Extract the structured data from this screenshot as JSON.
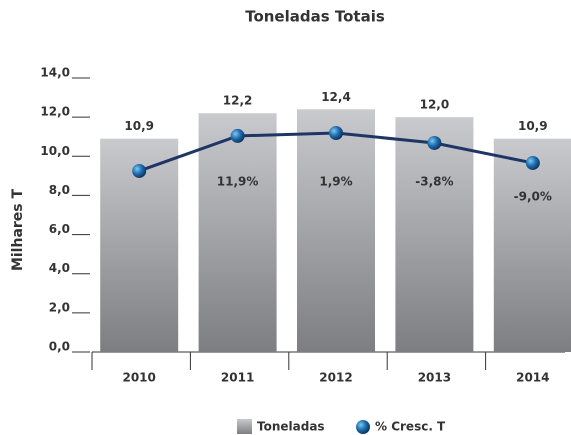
{
  "chart_data": {
    "type": "bar_line",
    "title": "Toneladas Totais",
    "y_label": "Milhares T",
    "categories": [
      "2010",
      "2011",
      "2012",
      "2013",
      "2014"
    ],
    "series": [
      {
        "name": "Toneladas",
        "type": "bar",
        "color": "#9a9b9f",
        "values": [
          10.9,
          12.2,
          12.4,
          12.0,
          10.9
        ],
        "value_labels": [
          "10,9",
          "12,2",
          "12,4",
          "12,0",
          "10,9"
        ]
      },
      {
        "name": "% Cresc. T",
        "type": "line",
        "color": "#1f3565",
        "values": [
          9.25,
          11.04,
          11.19,
          10.68,
          9.66
        ],
        "point_labels": [
          null,
          "11,9%",
          "1,9%",
          "-3,8%",
          "-9,0%"
        ]
      }
    ],
    "ylim": [
      0,
      14
    ],
    "yticks": [
      {
        "value": 0,
        "label": "0,0"
      },
      {
        "value": 2,
        "label": "2,0"
      },
      {
        "value": 4,
        "label": "4,0"
      },
      {
        "value": 6,
        "label": "6,0"
      },
      {
        "value": 8,
        "label": "8,0"
      },
      {
        "value": 10,
        "label": "10,0"
      },
      {
        "value": 12,
        "label": "12,0"
      },
      {
        "value": 14,
        "label": "14,0"
      }
    ],
    "legend": "bottom"
  }
}
